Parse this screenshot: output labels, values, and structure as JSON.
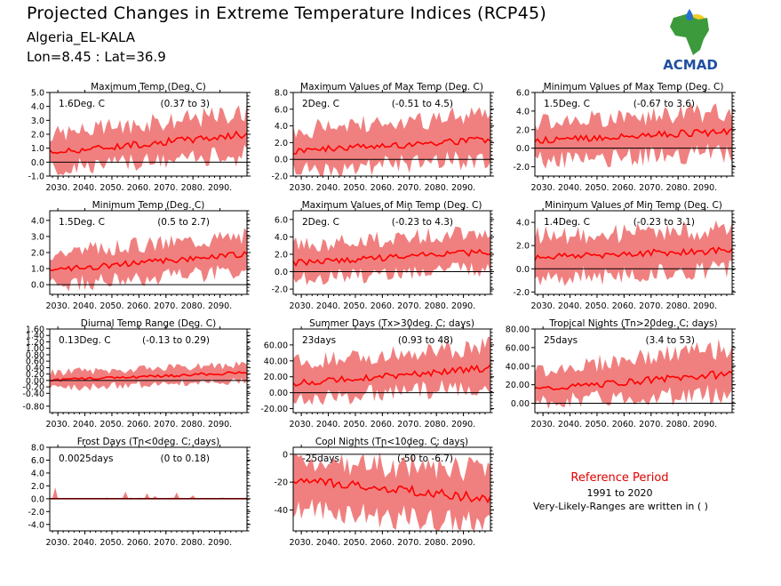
{
  "header": {
    "title": "Projected Changes in Extreme Temperature Indices (RCP45)",
    "location": "Algeria_EL-KALA",
    "coords": "Lon=8.45 : Lat=36.9"
  },
  "logo": {
    "text": "ACMAD",
    "colors": {
      "africa": "#3c9a3c",
      "text": "#1f4fa0",
      "sun": "#f2c200",
      "drop": "#2a6fd0"
    }
  },
  "reference": {
    "title": "Reference Period",
    "years": "1991 to 2020",
    "note": "Very-Likely-Ranges are written in ( )"
  },
  "colors": {
    "band": "#f08080",
    "line": "#ff0000",
    "zero": "#000000"
  },
  "x_ticks": [
    2030,
    2040,
    2050,
    2060,
    2070,
    2080,
    2090
  ],
  "x_tick_labels": [
    "2030.",
    "2040.",
    "2050.",
    "2060.",
    "2070.",
    "2080.",
    "2090."
  ],
  "chart_data": [
    {
      "type": "area",
      "title": "Maximum Temp (Deg. C)",
      "summary": "1.6Deg. C",
      "range": "(0.37 to 3)",
      "xlim": [
        2027,
        2100
      ],
      "ylim": [
        -1.0,
        5.0
      ],
      "yticks": [
        -1.0,
        0.0,
        1.0,
        2.0,
        3.0,
        4.0,
        5.0
      ],
      "decimals": 1,
      "series": {
        "start": [
          2027,
          0.7,
          -0.5,
          2.0
        ],
        "end": [
          2100,
          2.0,
          0.5,
          3.6
        ]
      }
    },
    {
      "type": "area",
      "title": "Maximum Values of Max Temp (Deg. C)",
      "summary": "2Deg. C",
      "range": "(-0.51 to 4.5)",
      "xlim": [
        2027,
        2100
      ],
      "ylim": [
        -2.0,
        8.0
      ],
      "yticks": [
        -2.0,
        0.0,
        2.0,
        4.0,
        6.0,
        8.0
      ],
      "decimals": 1,
      "series": {
        "start": [
          2027,
          1.0,
          -1.2,
          3.5
        ],
        "end": [
          2100,
          2.4,
          0.0,
          5.3
        ]
      }
    },
    {
      "type": "area",
      "title": "Minimum Values of Max Temp (Deg. C)",
      "summary": "1.5Deg. C",
      "range": "(-0.67 to 3.6)",
      "xlim": [
        2027,
        2100
      ],
      "ylim": [
        -3.0,
        6.0
      ],
      "yticks": [
        -2.0,
        0.0,
        2.0,
        4.0,
        6.0
      ],
      "decimals": 1,
      "series": {
        "start": [
          2027,
          0.8,
          -1.3,
          2.8
        ],
        "end": [
          2100,
          1.8,
          -0.5,
          4.0
        ]
      }
    },
    {
      "type": "area",
      "title": "Minimum Temp (Deg. C)",
      "summary": "1.5Deg. C",
      "range": "(0.5 to 2.7)",
      "xlim": [
        2027,
        2100
      ],
      "ylim": [
        -0.6,
        4.6
      ],
      "yticks": [
        0.0,
        1.0,
        2.0,
        3.0,
        4.0
      ],
      "decimals": 1,
      "series": {
        "start": [
          2027,
          0.9,
          0.0,
          2.0
        ],
        "end": [
          2100,
          1.9,
          0.8,
          3.1
        ]
      }
    },
    {
      "type": "area",
      "title": "Maximum Values of Min Temp (Deg. C)",
      "summary": "2Deg. C",
      "range": "(-0.23 to 4.3)",
      "xlim": [
        2027,
        2100
      ],
      "ylim": [
        -2.6,
        7.0
      ],
      "yticks": [
        -2.0,
        0.0,
        2.0,
        4.0,
        6.0
      ],
      "decimals": 1,
      "series": {
        "start": [
          2027,
          1.0,
          -0.8,
          3.0
        ],
        "end": [
          2100,
          2.3,
          0.4,
          4.6
        ]
      }
    },
    {
      "type": "area",
      "title": "Minimum Values of Min Temp (Deg. C)",
      "summary": "1.4Deg. C",
      "range": "(-0.23 to 3.1)",
      "xlim": [
        2027,
        2100
      ],
      "ylim": [
        -2.2,
        5.0
      ],
      "yticks": [
        -2.0,
        0.0,
        2.0,
        4.0
      ],
      "decimals": 1,
      "series": {
        "start": [
          2027,
          1.0,
          -0.8,
          2.8
        ],
        "end": [
          2100,
          1.6,
          0.0,
          3.4
        ]
      }
    },
    {
      "type": "area",
      "title": "Diurnal Temp Range (Deg. C)",
      "summary": "0.13Deg. C",
      "range": "(-0.13 to 0.29)",
      "xlim": [
        2027,
        2100
      ],
      "ylim": [
        -1.0,
        1.6
      ],
      "yticks": [
        -0.8,
        -0.4,
        -0.2,
        0.0,
        0.2,
        0.4,
        0.6,
        0.8,
        1.0,
        1.2,
        1.4,
        1.6
      ],
      "decimals": 2,
      "series": {
        "start": [
          2027,
          0.0,
          -0.25,
          0.25
        ],
        "end": [
          2100,
          0.25,
          0.0,
          0.5
        ]
      }
    },
    {
      "type": "area",
      "title": "Summer Days (Tx>30deg. C; days)",
      "summary": "23days",
      "range": "(0.93 to 48)",
      "xlim": [
        2027,
        2100
      ],
      "ylim": [
        -25,
        80
      ],
      "yticks": [
        -20,
        0,
        20,
        40,
        60
      ],
      "decimals": 2,
      "series": {
        "start": [
          2027,
          12,
          -8,
          38
        ],
        "end": [
          2100,
          31,
          8,
          58
        ]
      }
    },
    {
      "type": "area",
      "title": "Tropical Nights (Tn>20deg. C; days)",
      "summary": "25days",
      "range": "(3.4 to 53)",
      "xlim": [
        2027,
        2100
      ],
      "ylim": [
        -10,
        80
      ],
      "yticks": [
        0,
        20,
        40,
        60,
        80
      ],
      "decimals": 2,
      "series": {
        "start": [
          2027,
          15,
          2,
          35
        ],
        "end": [
          2100,
          32,
          10,
          60
        ]
      }
    },
    {
      "type": "area",
      "title": "Frost Days (Tn<0deg. C; days)",
      "summary": "0.0025days",
      "range": "(0 to 0.18)",
      "xlim": [
        2027,
        2100
      ],
      "ylim": [
        -5.0,
        8.0
      ],
      "yticks": [
        -4.0,
        -2.0,
        0.0,
        2.0,
        4.0,
        6.0,
        8.0
      ],
      "decimals": 1,
      "series": {
        "start": [
          2027,
          0,
          0,
          0.8
        ],
        "end": [
          2100,
          0,
          0,
          0.2
        ]
      }
    },
    {
      "type": "area",
      "title": "Cool Nights (Tn<10deg. C; days)",
      "summary": "-25days",
      "range": "(-50 to -6.7)",
      "xlim": [
        2027,
        2100
      ],
      "ylim": [
        -55,
        5
      ],
      "yticks": [
        -40,
        -20,
        0
      ],
      "decimals": 0,
      "series": {
        "start": [
          2027,
          -18,
          -38,
          -4
        ],
        "end": [
          2100,
          -32,
          -52,
          -12
        ]
      }
    }
  ]
}
